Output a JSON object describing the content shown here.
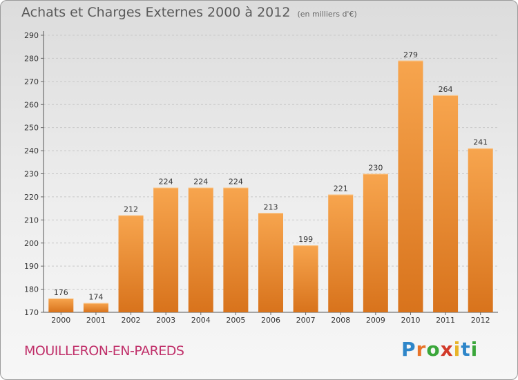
{
  "header": {
    "title": "Achats et Charges Externes 2000 à 2012",
    "subtitle": "(en milliers d'€)"
  },
  "footer": {
    "commune": "MOUILLERON-EN-PAREDS",
    "logo_letters": [
      "P",
      "r",
      "o",
      "x",
      "i",
      "t",
      "i"
    ],
    "logo_colors": [
      "#2e86c9",
      "#e8742a",
      "#3aa63a",
      "#d23a2a",
      "#e8b42a",
      "#2e86c9",
      "#3aa63a"
    ]
  },
  "chart_data": {
    "type": "bar",
    "title": "Achats et Charges Externes 2000 à 2012",
    "subtitle": "(en milliers d'€)",
    "categories": [
      "2000",
      "2001",
      "2002",
      "2003",
      "2004",
      "2005",
      "2006",
      "2007",
      "2008",
      "2009",
      "2010",
      "2011",
      "2012"
    ],
    "values": [
      176,
      174,
      212,
      224,
      224,
      224,
      213,
      199,
      221,
      230,
      279,
      264,
      241
    ],
    "ylim": [
      170,
      290
    ],
    "yticks": [
      170,
      180,
      190,
      200,
      210,
      220,
      230,
      240,
      250,
      260,
      270,
      280,
      290
    ],
    "grid": true,
    "bar_color_top": "#f7a54e",
    "bar_color_bottom": "#d8731c"
  }
}
